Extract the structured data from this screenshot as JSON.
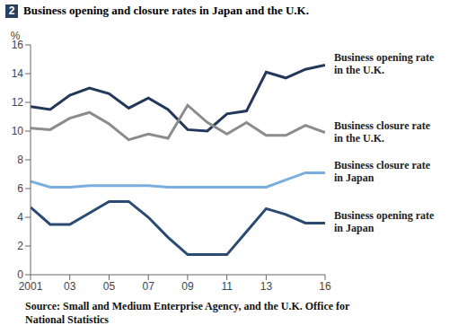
{
  "chart_data": {
    "type": "line",
    "figure_number": "2",
    "title": "Business opening and closure rates in Japan and the U.K.",
    "y_label": "%",
    "source": "Source: Small and Medium Enterprise Agency, and the U.K. Office for National Statistics",
    "x": [
      2001,
      2002,
      2003,
      2004,
      2005,
      2006,
      2007,
      2008,
      2009,
      2010,
      2011,
      2012,
      2013,
      2014,
      2015,
      2016
    ],
    "xlim": [
      2001,
      2016
    ],
    "xticks": [
      2001,
      {
        "value": 2003,
        "label": "03"
      },
      {
        "value": 2005,
        "label": "05"
      },
      {
        "value": 2007,
        "label": "07"
      },
      {
        "value": 2009,
        "label": "09"
      },
      {
        "value": 2011,
        "label": "11"
      },
      {
        "value": 2013,
        "label": "13"
      },
      {
        "value": 2016,
        "label": "16"
      }
    ],
    "ylim": [
      0,
      16
    ],
    "yticks": [
      0,
      2,
      4,
      6,
      8,
      10,
      12,
      14,
      16
    ],
    "grid": false,
    "series": [
      {
        "name": "Business opening rate in the U.K.",
        "color": "#22375a",
        "values": [
          11.7,
          11.5,
          12.5,
          13.0,
          12.6,
          11.6,
          12.3,
          11.5,
          10.1,
          10.0,
          11.2,
          11.4,
          14.1,
          13.7,
          14.3,
          14.6
        ]
      },
      {
        "name": "Business closure rate in the U.K.",
        "color": "#8c8c8c",
        "values": [
          10.2,
          10.1,
          10.9,
          11.3,
          10.5,
          9.4,
          9.8,
          9.5,
          11.8,
          10.6,
          9.8,
          10.6,
          9.7,
          9.7,
          10.4,
          9.9
        ]
      },
      {
        "name": "Business closure rate in Japan",
        "color": "#7aaede",
        "values": [
          6.5,
          6.1,
          6.1,
          6.2,
          6.2,
          6.2,
          6.2,
          6.1,
          6.1,
          6.1,
          6.1,
          6.1,
          6.1,
          6.6,
          7.1,
          7.1
        ]
      },
      {
        "name": "Business opening rate in Japan",
        "color": "#2a4a72",
        "values": [
          4.7,
          3.5,
          3.5,
          4.3,
          5.1,
          5.1,
          4.0,
          2.6,
          1.4,
          1.4,
          1.4,
          3.0,
          4.6,
          4.2,
          3.6,
          3.6
        ]
      }
    ]
  }
}
